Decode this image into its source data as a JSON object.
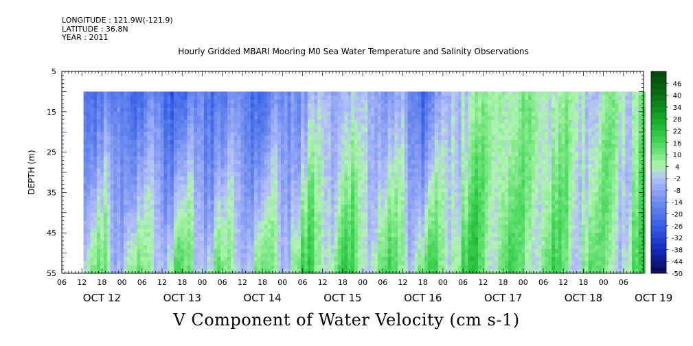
{
  "meta": {
    "longitude": "LONGITUDE : 121.9W(-121.9)",
    "latitude": "LATITUDE : 36.8N",
    "year": "YEAR : 2011"
  },
  "chart_data": {
    "type": "heatmap",
    "title": "Hourly Gridded MBARI Mooring M0 Sea Water Temperature and Salinity Observations",
    "xlabel": "V Component of Water Velocity (cm s-1)",
    "ylabel": "DEPTH (m)",
    "ylim": [
      5,
      55
    ],
    "y_inverted": true,
    "y_ticks": [
      5,
      15,
      25,
      35,
      45,
      55
    ],
    "data_depth_range": [
      10,
      55
    ],
    "x_range_hours": [
      0,
      174
    ],
    "data_start_hour": 6.5,
    "x_hour_tick_labels": [
      "06",
      "12",
      "18",
      "00",
      "06",
      "12",
      "18",
      "00",
      "06",
      "12",
      "18",
      "00",
      "06",
      "12",
      "18",
      "00",
      "06",
      "12",
      "18",
      "00",
      "06",
      "12",
      "18",
      "00",
      "06",
      "12",
      "18",
      "00",
      "06"
    ],
    "x_date_labels": [
      {
        "label": "OCT 12",
        "hour": 12
      },
      {
        "label": "OCT 13",
        "hour": 36
      },
      {
        "label": "OCT 14",
        "hour": 60
      },
      {
        "label": "OCT 15",
        "hour": 84
      },
      {
        "label": "OCT 16",
        "hour": 108
      },
      {
        "label": "OCT 17",
        "hour": 132
      },
      {
        "label": "OCT 18",
        "hour": 156
      },
      {
        "label": "OCT 19",
        "hour": 177
      }
    ],
    "colorbar": {
      "labels": [
        "46",
        "40",
        "34",
        "28",
        "22",
        "16",
        "10",
        "4",
        "-2",
        "-8",
        "-14",
        "-20",
        "-26",
        "-32",
        "-38",
        "-44",
        "-50"
      ],
      "min": -50,
      "max": 52,
      "step": 3
    },
    "velocity_pattern": {
      "surface_hour_anchors": [
        0,
        12,
        24,
        36,
        48,
        60,
        72,
        84,
        96,
        108,
        120,
        132,
        144,
        156,
        168,
        174
      ],
      "surface_values": [
        -15,
        -18,
        -20,
        -22,
        -15,
        -20,
        -8,
        -2,
        -5,
        -20,
        3,
        8,
        5,
        2,
        3,
        10
      ],
      "deep_values": [
        2,
        6,
        4,
        8,
        5,
        6,
        10,
        12,
        10,
        8,
        14,
        12,
        8,
        10,
        4,
        10
      ]
    }
  }
}
